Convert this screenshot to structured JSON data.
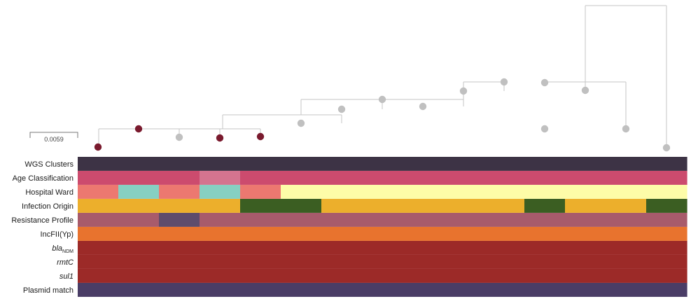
{
  "scale_bar": {
    "label": "0.0059"
  },
  "colors": {
    "tree_line": "#c6c6c6",
    "node_gray": "#c0c0c0",
    "node_highlight": "#7a1a2e",
    "WGS": "#3d3345",
    "AgeMain": "#cc4b6e",
    "AgeLight": "#d4748f",
    "WardSalmon": "#ec7870",
    "WardTeal": "#86d0c2",
    "WardYellow": "#fdfca8",
    "OriginOrange": "#ecaf2c",
    "OriginGreen": "#3b5e22",
    "ResMain": "#a85b6b",
    "ResPurple": "#5e4c6c",
    "Inc": "#e8732e",
    "Red": "#9c2a28",
    "Plasmid": "#4a3d66"
  },
  "leaves": [
    {
      "id": 1,
      "highlight": true
    },
    {
      "id": 2,
      "highlight": true
    },
    {
      "id": 3,
      "highlight": false
    },
    {
      "id": 4,
      "highlight": true
    },
    {
      "id": 5,
      "highlight": true
    },
    {
      "id": 6,
      "highlight": false
    },
    {
      "id": 7,
      "highlight": false
    },
    {
      "id": 8,
      "highlight": false
    },
    {
      "id": 9,
      "highlight": false
    },
    {
      "id": 10,
      "highlight": false
    },
    {
      "id": 11,
      "highlight": false
    },
    {
      "id": 12,
      "highlight": false
    },
    {
      "id": 13,
      "highlight": false
    },
    {
      "id": 14,
      "highlight": false
    },
    {
      "id": 15,
      "highlight": false
    }
  ],
  "rows": [
    {
      "label": "WGS Clusters",
      "cells": [
        "WGS",
        "WGS",
        "WGS",
        "WGS",
        "WGS",
        "WGS",
        "WGS",
        "WGS",
        "WGS",
        "WGS",
        "WGS",
        "WGS",
        "WGS",
        "WGS",
        "WGS"
      ]
    },
    {
      "label": "Age Classification",
      "cells": [
        "AgeMain",
        "AgeMain",
        "AgeMain",
        "AgeLight",
        "AgeMain",
        "AgeMain",
        "AgeMain",
        "AgeMain",
        "AgeMain",
        "AgeMain",
        "AgeMain",
        "AgeMain",
        "AgeMain",
        "AgeMain",
        "AgeMain"
      ]
    },
    {
      "label": "Hospital Ward",
      "cells": [
        "WardSalmon",
        "WardTeal",
        "WardSalmon",
        "WardTeal",
        "WardSalmon",
        "WardYellow",
        "WardYellow",
        "WardYellow",
        "WardYellow",
        "WardYellow",
        "WardYellow",
        "WardYellow",
        "WardYellow",
        "WardYellow",
        "WardYellow"
      ]
    },
    {
      "label": "Infection Origin",
      "cells": [
        "OriginOrange",
        "OriginOrange",
        "OriginOrange",
        "OriginOrange",
        "OriginGreen",
        "OriginGreen",
        "OriginOrange",
        "OriginOrange",
        "OriginOrange",
        "OriginOrange",
        "OriginOrange",
        "OriginGreen",
        "OriginOrange",
        "OriginOrange",
        "OriginGreen"
      ]
    },
    {
      "label": "Resistance Profile",
      "cells": [
        "ResMain",
        "ResMain",
        "ResPurple",
        "ResMain",
        "ResMain",
        "ResMain",
        "ResMain",
        "ResMain",
        "ResMain",
        "ResMain",
        "ResMain",
        "ResMain",
        "ResMain",
        "ResMain",
        "ResMain"
      ]
    },
    {
      "label": "IncFII(Yp)",
      "cells": [
        "Inc",
        "Inc",
        "Inc",
        "Inc",
        "Inc",
        "Inc",
        "Inc",
        "Inc",
        "Inc",
        "Inc",
        "Inc",
        "Inc",
        "Inc",
        "Inc",
        "Inc"
      ]
    },
    {
      "label": "bla",
      "sub": "NDM",
      "italic": true,
      "cells": [
        "Red",
        "Red",
        "Red",
        "Red",
        "Red",
        "Red",
        "Red",
        "Red",
        "Red",
        "Red",
        "Red",
        "Red",
        "Red",
        "Red",
        "Red"
      ]
    },
    {
      "label": "rmtC",
      "italic": true,
      "cells": [
        "Red",
        "Red",
        "Red",
        "Red",
        "Red",
        "Red",
        "Red",
        "Red",
        "Red",
        "Red",
        "Red",
        "Red",
        "Red",
        "Red",
        "Red"
      ]
    },
    {
      "label": "sul1",
      "italic": true,
      "cells": [
        "Red",
        "Red",
        "Red",
        "Red",
        "Red",
        "Red",
        "Red",
        "Red",
        "Red",
        "Red",
        "Red",
        "Red",
        "Red",
        "Red",
        "Red"
      ]
    },
    {
      "label": "Plasmid match",
      "cells": [
        "Plasmid",
        "Plasmid",
        "Plasmid",
        "Plasmid",
        "Plasmid",
        "Plasmid",
        "Plasmid",
        "Plasmid",
        "Plasmid",
        "Plasmid",
        "Plasmid",
        "Plasmid",
        "Plasmid",
        "Plasmid",
        "Plasmid"
      ]
    }
  ]
}
